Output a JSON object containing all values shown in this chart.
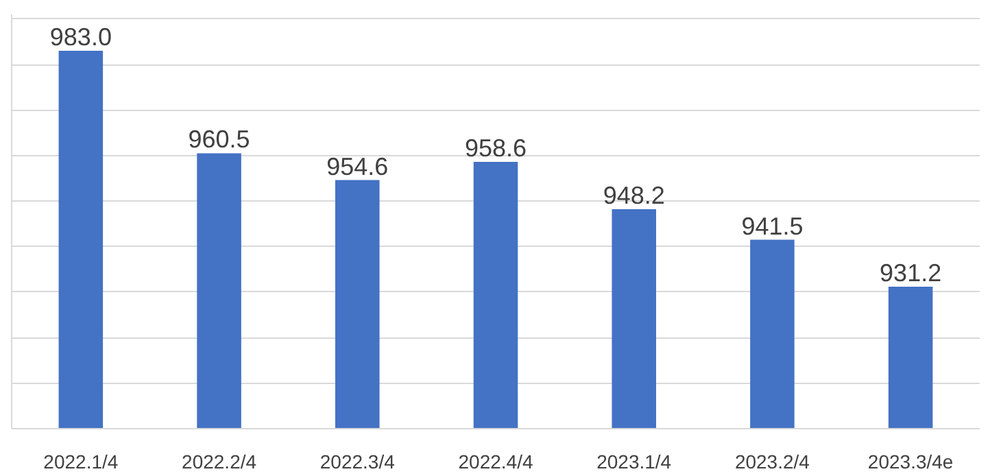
{
  "chart_data": {
    "type": "bar",
    "categories": [
      "2022.1/4",
      "2022.2/4",
      "2022.3/4",
      "2022.4/4",
      "2023.1/4",
      "2023.2/4",
      "2023.3/4e"
    ],
    "values": [
      983.0,
      960.5,
      954.6,
      958.6,
      948.2,
      941.5,
      931.2
    ],
    "value_labels": [
      "983.0",
      "960.5",
      "954.6",
      "958.6",
      "948.2",
      "941.5",
      "931.2"
    ],
    "color": "#4472c4",
    "ylim": [
      900,
      991
    ],
    "yticks": [
      {
        "value": 900,
        "label": null
      },
      {
        "value": 910,
        "label": null
      },
      {
        "value": 920,
        "label": null
      },
      {
        "value": 930,
        "label": null
      },
      {
        "value": 940,
        "label": null
      },
      {
        "value": 950,
        "label": null
      },
      {
        "value": 960,
        "label": null
      },
      {
        "value": 970,
        "label": null
      },
      {
        "value": 980,
        "label": null
      },
      {
        "value": 990,
        "label": null
      }
    ],
    "tick_labels": "x",
    "grid": "y"
  }
}
